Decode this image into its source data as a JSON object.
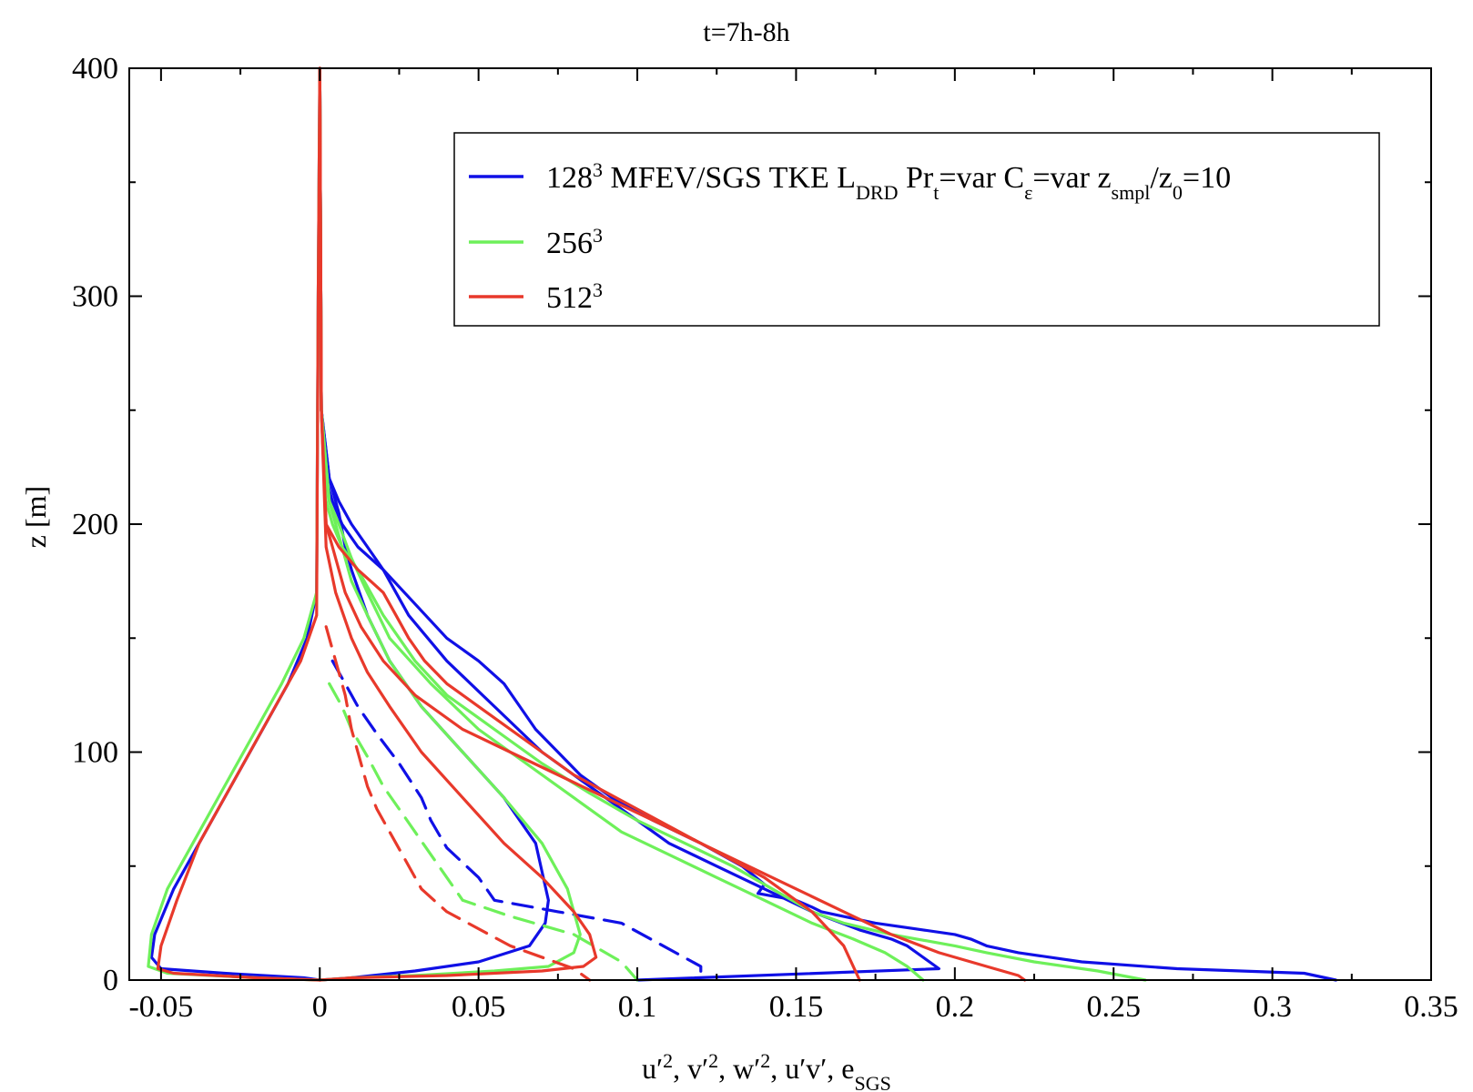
{
  "chart_data": {
    "type": "line",
    "title": "t=7h-8h",
    "xlabel": {
      "parts": [
        {
          "t": "u′"
        },
        {
          "t": "2",
          "sup": true
        },
        {
          "t": ", v′"
        },
        {
          "t": "2",
          "sup": true
        },
        {
          "t": ", w′"
        },
        {
          "t": "2",
          "sup": true
        },
        {
          "t": ", u′v′, e"
        },
        {
          "t": "SGS",
          "sub": true
        }
      ]
    },
    "ylabel": "z [m]",
    "xlim": [
      -0.06,
      0.35
    ],
    "ylim": [
      0,
      400
    ],
    "xticks": [
      -0.05,
      0,
      0.05,
      0.1,
      0.15,
      0.2,
      0.25,
      0.3,
      0.35
    ],
    "xtick_labels": [
      "-0.05",
      "0",
      "0.05",
      "0.1",
      "0.15",
      "0.2",
      "0.25",
      "0.3",
      "0.35"
    ],
    "yticks": [
      0,
      100,
      200,
      300,
      400
    ],
    "ytick_labels": [
      "0",
      "100",
      "200",
      "300",
      "400"
    ],
    "grid": false,
    "legend_position": "top-right",
    "legend": [
      {
        "color": "#1010e6",
        "parts": [
          {
            "t": "128"
          },
          {
            "t": "3",
            "sup": true
          },
          {
            "t": " MFEV/SGS TKE L"
          },
          {
            "t": "DRD",
            "sub": true
          },
          {
            "t": " Pr"
          },
          {
            "t": "t",
            "sub": true
          },
          {
            "t": "=var C"
          },
          {
            "t": "ε",
            "sub": true
          },
          {
            "t": "=var z"
          },
          {
            "t": "smpl",
            "sub": true
          },
          {
            "t": "/z"
          },
          {
            "t": "0",
            "sub": true
          },
          {
            "t": "=10"
          }
        ]
      },
      {
        "color": "#6ef05a",
        "parts": [
          {
            "t": "256"
          },
          {
            "t": "3",
            "sup": true
          }
        ]
      },
      {
        "color": "#e8392b",
        "parts": [
          {
            "t": "512"
          },
          {
            "t": "3",
            "sup": true
          }
        ]
      }
    ],
    "series": [
      {
        "name": "128^3 u'2",
        "color": "#1010e6",
        "dash": false,
        "x": [
          0,
          0.0005,
          0.002,
          0.004,
          0.007,
          0.012,
          0.02,
          0.03,
          0.04,
          0.05,
          0.058,
          0.063,
          0.068,
          0.075,
          0.082,
          0.092,
          0.105,
          0.12,
          0.133,
          0.14,
          0.138,
          0.15,
          0.155,
          0.158,
          0.175,
          0.19,
          0.2,
          0.205,
          0.21,
          0.22,
          0.24,
          0.27,
          0.31,
          0.32
        ],
        "y": [
          400,
          250,
          220,
          210,
          200,
          190,
          180,
          165,
          150,
          140,
          130,
          120,
          110,
          100,
          90,
          80,
          70,
          60,
          50,
          42,
          38,
          35,
          32,
          30,
          25,
          22,
          20,
          18,
          15,
          12,
          8,
          5,
          3,
          0
        ]
      },
      {
        "name": "128^3 v'2",
        "color": "#1010e6",
        "dash": false,
        "x": [
          0,
          0.0005,
          0.003,
          0.006,
          0.01,
          0.015,
          0.02,
          0.028,
          0.04,
          0.055,
          0.07,
          0.085,
          0.1,
          0.11,
          0.125,
          0.14,
          0.155,
          0.17,
          0.18,
          0.185,
          0.19,
          0.195,
          0.1
        ],
        "y": [
          400,
          250,
          220,
          210,
          200,
          190,
          180,
          160,
          140,
          120,
          100,
          85,
          70,
          60,
          50,
          40,
          30,
          22,
          18,
          15,
          10,
          5,
          0
        ]
      },
      {
        "name": "128^3 w'2",
        "color": "#1010e6",
        "dash": false,
        "x": [
          0,
          0.0005,
          0.003,
          0.006,
          0.008,
          0.01,
          0.015,
          0.022,
          0.032,
          0.045,
          0.058,
          0.068,
          0.072,
          0.071,
          0.066,
          0.05,
          0.03,
          0.01,
          0
        ],
        "y": [
          400,
          250,
          220,
          205,
          190,
          180,
          160,
          140,
          120,
          100,
          80,
          60,
          35,
          25,
          15,
          8,
          4,
          1,
          0
        ]
      },
      {
        "name": "128^3 u'v'",
        "color": "#1010e6",
        "dash": false,
        "x": [
          0,
          -0.0005,
          -0.001,
          -0.004,
          -0.01,
          -0.018,
          -0.028,
          -0.038,
          -0.046,
          -0.052,
          -0.053,
          -0.05,
          -0.03,
          -0.005,
          0
        ],
        "y": [
          400,
          300,
          170,
          150,
          130,
          110,
          85,
          60,
          40,
          20,
          10,
          5,
          3,
          1,
          0
        ]
      },
      {
        "name": "128^3 e_SGS",
        "color": "#1010e6",
        "dash": true,
        "x": [
          0.004,
          0.008,
          0.012,
          0.018,
          0.025,
          0.032,
          0.035,
          0.04,
          0.05,
          0.055,
          0.075,
          0.095,
          0.12,
          0.12
        ],
        "y": [
          140,
          130,
          120,
          108,
          95,
          80,
          70,
          58,
          45,
          35,
          30,
          25,
          6,
          0
        ]
      },
      {
        "name": "256^3 u'2",
        "color": "#6ef05a",
        "dash": false,
        "x": [
          0,
          0.0005,
          0.002,
          0.004,
          0.007,
          0.012,
          0.02,
          0.03,
          0.04,
          0.05,
          0.06,
          0.07,
          0.085,
          0.1,
          0.115,
          0.13,
          0.145,
          0.155,
          0.165,
          0.18,
          0.2,
          0.21,
          0.225,
          0.245,
          0.26
        ],
        "y": [
          400,
          250,
          210,
          200,
          190,
          180,
          160,
          140,
          125,
          115,
          105,
          95,
          82,
          70,
          60,
          50,
          38,
          30,
          25,
          20,
          15,
          12,
          8,
          4,
          0
        ]
      },
      {
        "name": "256^3 v'2",
        "color": "#6ef05a",
        "dash": false,
        "x": [
          0,
          0.0005,
          0.003,
          0.006,
          0.01,
          0.015,
          0.022,
          0.035,
          0.05,
          0.065,
          0.08,
          0.095,
          0.11,
          0.125,
          0.14,
          0.155,
          0.168,
          0.178,
          0.185,
          0.19
        ],
        "y": [
          400,
          250,
          210,
          200,
          185,
          170,
          150,
          130,
          110,
          95,
          80,
          65,
          55,
          45,
          35,
          25,
          18,
          12,
          6,
          0
        ]
      },
      {
        "name": "256^3 w'2",
        "color": "#6ef05a",
        "dash": false,
        "x": [
          0,
          0.0005,
          0.003,
          0.006,
          0.01,
          0.015,
          0.022,
          0.032,
          0.045,
          0.058,
          0.07,
          0.078,
          0.082,
          0.08,
          0.072,
          0.055,
          0.03,
          0.01,
          0
        ],
        "y": [
          400,
          250,
          210,
          195,
          175,
          160,
          140,
          120,
          100,
          80,
          60,
          40,
          20,
          12,
          6,
          4,
          2,
          1,
          0
        ]
      },
      {
        "name": "256^3 u'v'",
        "color": "#6ef05a",
        "dash": false,
        "x": [
          0,
          -0.0005,
          -0.001,
          -0.005,
          -0.012,
          -0.02,
          -0.03,
          -0.04,
          -0.048,
          -0.053,
          -0.054,
          -0.048,
          -0.02,
          0
        ],
        "y": [
          400,
          300,
          170,
          150,
          130,
          110,
          85,
          60,
          40,
          20,
          6,
          3,
          1,
          0
        ]
      },
      {
        "name": "256^3 e_SGS",
        "color": "#6ef05a",
        "dash": true,
        "x": [
          0.003,
          0.007,
          0.01,
          0.015,
          0.02,
          0.025,
          0.03,
          0.035,
          0.04,
          0.045,
          0.06,
          0.08,
          0.095,
          0.1
        ],
        "y": [
          130,
          120,
          110,
          98,
          85,
          75,
          65,
          55,
          45,
          35,
          28,
          20,
          8,
          0
        ]
      },
      {
        "name": "512^3 u'2",
        "color": "#e8392b",
        "dash": false,
        "x": [
          0,
          0.0005,
          0.002,
          0.004,
          0.008,
          0.013,
          0.02,
          0.03,
          0.045,
          0.06,
          0.075,
          0.09,
          0.105,
          0.12,
          0.135,
          0.15,
          0.165,
          0.18,
          0.195,
          0.21,
          0.22,
          0.222
        ],
        "y": [
          400,
          250,
          200,
          190,
          170,
          155,
          140,
          125,
          110,
          100,
          90,
          80,
          70,
          60,
          50,
          40,
          30,
          20,
          12,
          6,
          2,
          0
        ]
      },
      {
        "name": "512^3 v'2",
        "color": "#e8392b",
        "dash": false,
        "x": [
          0,
          0.0005,
          0.002,
          0.004,
          0.006,
          0.009,
          0.012,
          0.016,
          0.02,
          0.024,
          0.028,
          0.033,
          0.04,
          0.05,
          0.065,
          0.08,
          0.1,
          0.12,
          0.14,
          0.155,
          0.165,
          0.17
        ],
        "y": [
          400,
          250,
          200,
          195,
          190,
          185,
          180,
          175,
          170,
          160,
          150,
          140,
          130,
          120,
          105,
          90,
          75,
          60,
          45,
          30,
          15,
          0
        ]
      },
      {
        "name": "512^3 w'2",
        "color": "#e8392b",
        "dash": false,
        "x": [
          0,
          0.0005,
          0.002,
          0.005,
          0.01,
          0.015,
          0.022,
          0.032,
          0.045,
          0.058,
          0.07,
          0.08,
          0.085,
          0.087,
          0.083,
          0.07,
          0.04,
          0.01,
          0
        ],
        "y": [
          400,
          250,
          190,
          170,
          150,
          135,
          120,
          100,
          80,
          60,
          45,
          30,
          20,
          10,
          6,
          4,
          2,
          1,
          0
        ]
      },
      {
        "name": "512^3 u'v'",
        "color": "#e8392b",
        "dash": false,
        "x": [
          0,
          -0.0005,
          -0.001,
          -0.006,
          -0.014,
          -0.022,
          -0.03,
          -0.038,
          -0.045,
          -0.05,
          -0.051,
          -0.046,
          -0.02,
          0
        ],
        "y": [
          400,
          300,
          160,
          140,
          120,
          100,
          80,
          60,
          35,
          15,
          5,
          3,
          1,
          0
        ]
      },
      {
        "name": "512^3 e_SGS",
        "color": "#e8392b",
        "dash": true,
        "x": [
          0.002,
          0.005,
          0.008,
          0.01,
          0.012,
          0.015,
          0.018,
          0.022,
          0.026,
          0.032,
          0.04,
          0.06,
          0.08,
          0.085
        ],
        "y": [
          155,
          140,
          125,
          110,
          100,
          85,
          75,
          65,
          55,
          40,
          30,
          15,
          5,
          0
        ]
      }
    ]
  }
}
